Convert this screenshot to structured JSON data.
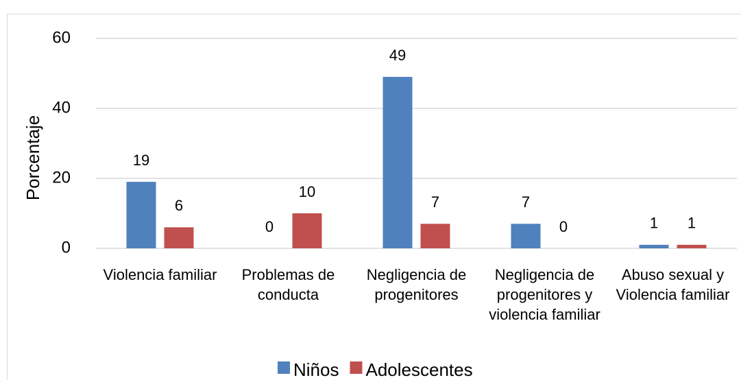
{
  "chart_data": {
    "type": "bar",
    "categories": [
      "Violencia familiar",
      "Problemas de conducta",
      "Negligencia de progenitores",
      "Negligencia de progenitores y violencia familiar",
      "Abuso sexual y Violencia familiar"
    ],
    "series": [
      {
        "name": "Niños",
        "color": "#4f81bd",
        "values": [
          19,
          0,
          49,
          7,
          1
        ]
      },
      {
        "name": "Adolescentes",
        "color": "#c0504d",
        "values": [
          6,
          10,
          7,
          0,
          1
        ]
      }
    ],
    "ylabel": "Porcentaje",
    "ylim": [
      0,
      60
    ],
    "yticks": [
      0,
      20,
      40,
      60
    ],
    "grid": true,
    "legend": "bottom"
  }
}
